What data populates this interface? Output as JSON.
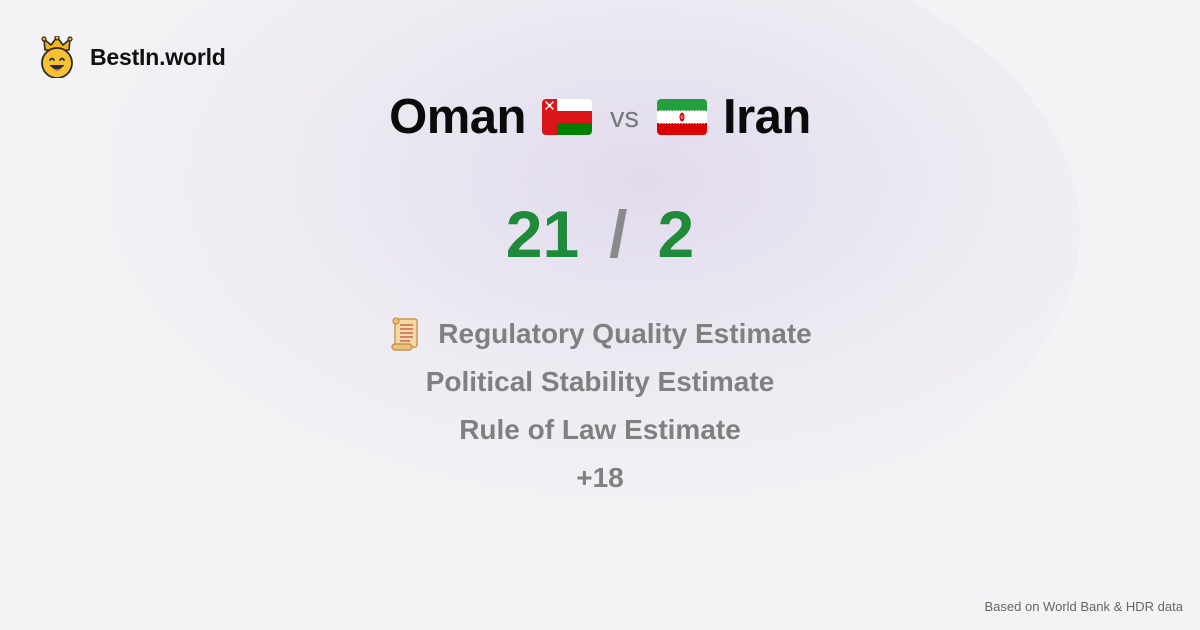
{
  "brand": {
    "name": "BestIn.world",
    "logo_icon": "crowned-smiley-icon"
  },
  "comparison": {
    "left": {
      "name": "Oman",
      "flag_icon": "oman-flag-icon"
    },
    "vs_label": "vs",
    "right": {
      "name": "Iran",
      "flag_icon": "iran-flag-icon"
    }
  },
  "scores": {
    "left": "21",
    "separator": "/",
    "right": "2",
    "color": "#1f8a3a"
  },
  "criteria": {
    "icon": "scroll-icon",
    "items": [
      "Regulatory Quality Estimate",
      "Political Stability Estimate",
      "Rule of Law Estimate"
    ],
    "more": "+18"
  },
  "footer": {
    "source": "Based on World Bank & HDR data"
  }
}
